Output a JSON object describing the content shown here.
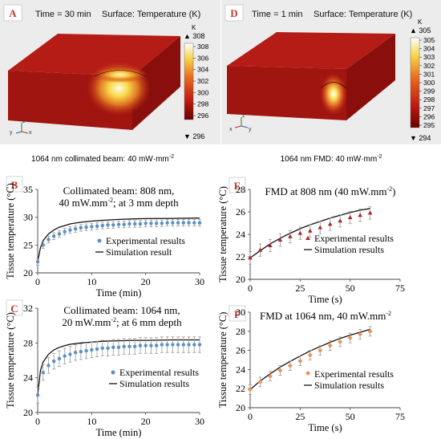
{
  "panels": {
    "A": {
      "letter": "A",
      "time": "Time = 30 min",
      "surface": "Surface: Temperature (K)",
      "unit": "K",
      "max_label": "▲ 308",
      "min_label": "▼ 296",
      "ticks": [
        "308",
        "306",
        "304",
        "302",
        "300",
        "298",
        "296"
      ],
      "caption": "1064 nm collimated beam: 40 mW·mm",
      "caption_sup": "-2",
      "axes": {
        "y": "y",
        "z": "z",
        "x": "x"
      }
    },
    "D": {
      "letter": "D",
      "time": "Time = 1 min",
      "surface": "Surface: Temperature (K)",
      "unit": "K",
      "max_label": "▲ 305",
      "min_label": "▼ 294",
      "ticks": [
        "305",
        "304",
        "303",
        "302",
        "301",
        "300",
        "299",
        "298",
        "297",
        "296",
        "295"
      ],
      "caption": "1064 nm FMD: 40 mW·mm",
      "caption_sup": "-2",
      "axes": {
        "y": "y",
        "z": "z",
        "x": "x"
      }
    }
  },
  "colors": {
    "letter": "#c0392b",
    "exp_blue": "#5b8fc9",
    "exp_red": "#a32a2a",
    "exp_orange": "#e8945a",
    "sim": "#111111",
    "error_bar": "#9a9a9a"
  },
  "chart_data": [
    {
      "id": "B",
      "type": "scatter",
      "letter": "B",
      "title_line1": "Collimated beam: 808 nm,",
      "title_line2": "40 mW.mm",
      "title_sup": "-2",
      "title_line2_rest": "; at 3 mm depth",
      "xlabel": "Time (min)",
      "ylabel": "Tissue temperature (°C)",
      "xlim": [
        0,
        30
      ],
      "ylim": [
        20,
        35
      ],
      "xticks": [
        0,
        10,
        20,
        30
      ],
      "yticks": [
        20,
        25,
        30,
        35
      ],
      "legend": [
        "Experimental results",
        "Simulation result"
      ],
      "series": [
        {
          "name": "Experimental results",
          "x": [
            0,
            1,
            2,
            3,
            4,
            5,
            6,
            7,
            8,
            9,
            10,
            11,
            12,
            13,
            14,
            15,
            16,
            17,
            18,
            19,
            20,
            21,
            22,
            23,
            24,
            25,
            26,
            27,
            28,
            29,
            30
          ],
          "y": [
            22.0,
            25.0,
            26.0,
            26.6,
            27.0,
            27.4,
            27.7,
            27.9,
            28.1,
            28.2,
            28.3,
            28.4,
            28.5,
            28.6,
            28.6,
            28.7,
            28.7,
            28.8,
            28.8,
            28.8,
            28.9,
            28.9,
            28.9,
            28.9,
            29.0,
            29.0,
            29.0,
            29.0,
            29.0,
            29.0,
            29.0
          ],
          "err": 0.6
        },
        {
          "name": "Simulation result",
          "x": [
            0,
            0.5,
            1,
            2,
            3,
            4,
            5,
            6,
            8,
            10,
            12,
            15,
            18,
            20,
            25,
            30
          ],
          "y": [
            22.0,
            24.5,
            25.8,
            27.0,
            27.7,
            28.2,
            28.5,
            28.8,
            29.1,
            29.3,
            29.45,
            29.6,
            29.7,
            29.75,
            29.8,
            29.85
          ]
        }
      ]
    },
    {
      "id": "C",
      "type": "scatter",
      "letter": "C",
      "title_line1": "Collimated beam: 1064 nm,",
      "title_line2": "20 mW.mm",
      "title_sup": "-2",
      "title_line2_rest": "; at 6 mm depth",
      "xlabel": "Time (min)",
      "ylabel": "Tissue temperature (°C)",
      "xlim": [
        0,
        30
      ],
      "ylim": [
        20,
        32
      ],
      "xticks": [
        0,
        10,
        20,
        30
      ],
      "yticks": [
        20,
        24,
        28,
        32
      ],
      "legend": [
        "Experimental results",
        "Simulation results"
      ],
      "series": [
        {
          "name": "Experimental results",
          "x": [
            0,
            1,
            2,
            3,
            4,
            5,
            6,
            7,
            8,
            9,
            10,
            11,
            12,
            13,
            14,
            15,
            16,
            17,
            18,
            19,
            20,
            21,
            22,
            23,
            24,
            25,
            26,
            27,
            28,
            29,
            30
          ],
          "y": [
            22.0,
            24.6,
            25.4,
            25.9,
            26.2,
            26.5,
            26.7,
            26.9,
            27.0,
            27.1,
            27.2,
            27.3,
            27.4,
            27.4,
            27.5,
            27.5,
            27.6,
            27.6,
            27.6,
            27.7,
            27.7,
            27.7,
            27.7,
            27.8,
            27.8,
            27.8,
            27.8,
            27.8,
            27.8,
            27.8,
            27.8
          ],
          "err": 0.9
        },
        {
          "name": "Simulation results",
          "x": [
            0,
            0.5,
            1,
            2,
            3,
            4,
            5,
            6,
            8,
            10,
            12,
            15,
            18,
            20,
            25,
            30
          ],
          "y": [
            22.0,
            24.8,
            25.8,
            26.7,
            27.2,
            27.5,
            27.7,
            27.85,
            28.0,
            28.1,
            28.2,
            28.25,
            28.3,
            28.3,
            28.35,
            28.35
          ]
        }
      ]
    },
    {
      "id": "E",
      "type": "scatter",
      "letter": "E",
      "title_line1": "FMD at 808 nm (40 mW.mm",
      "title_sup": "-2",
      "title_line1_rest": ")",
      "xlabel": "Time (s)",
      "ylabel": "Tissue temperature (°C)",
      "xlim": [
        0,
        75
      ],
      "ylim": [
        20,
        28
      ],
      "xticks": [
        0,
        25,
        50,
        75
      ],
      "yticks": [
        20,
        22,
        24,
        26,
        28
      ],
      "legend": [
        "Experimental results",
        "Simulation results"
      ],
      "series": [
        {
          "name": "Experimental results",
          "x": [
            0,
            5,
            10,
            15,
            20,
            25,
            30,
            35,
            40,
            45,
            50,
            55,
            60
          ],
          "y": [
            21.9,
            22.6,
            23.0,
            23.5,
            23.8,
            24.1,
            24.3,
            24.6,
            24.9,
            25.2,
            25.5,
            25.7,
            25.9
          ],
          "err": 0.55
        },
        {
          "name": "Simulation results",
          "x": [
            0,
            5,
            10,
            15,
            20,
            25,
            30,
            35,
            40,
            45,
            50,
            55,
            60
          ],
          "y": [
            21.9,
            22.55,
            23.15,
            23.65,
            24.1,
            24.5,
            24.85,
            25.15,
            25.45,
            25.7,
            25.95,
            26.15,
            26.3
          ]
        }
      ]
    },
    {
      "id": "F",
      "type": "scatter",
      "letter": "F",
      "title_line1": "FMD at 1064 nm, 40 mW.mm",
      "title_sup": "-2",
      "title_line1_rest": "",
      "xlabel": "Time (s)",
      "ylabel": "Tissue temperature (°C)",
      "xlim": [
        0,
        75
      ],
      "ylim": [
        20,
        30
      ],
      "xticks": [
        0,
        25,
        50,
        75
      ],
      "yticks": [
        20,
        22,
        24,
        26,
        28,
        30
      ],
      "legend": [
        "Experimental results",
        "Simulation results"
      ],
      "series": [
        {
          "name": "Experimental results",
          "x": [
            0,
            5,
            10,
            15,
            20,
            25,
            30,
            35,
            40,
            45,
            50,
            55,
            60
          ],
          "y": [
            21.9,
            22.7,
            23.3,
            23.9,
            24.4,
            24.9,
            25.5,
            26.0,
            26.5,
            26.9,
            27.3,
            27.7,
            28.0
          ],
          "err": 0.5
        },
        {
          "name": "Simulation results",
          "x": [
            0,
            5,
            10,
            15,
            20,
            25,
            30,
            35,
            40,
            45,
            50,
            55,
            60
          ],
          "y": [
            21.9,
            22.8,
            23.55,
            24.25,
            24.85,
            25.4,
            25.95,
            26.4,
            26.85,
            27.25,
            27.6,
            27.9,
            28.2
          ]
        }
      ]
    }
  ]
}
